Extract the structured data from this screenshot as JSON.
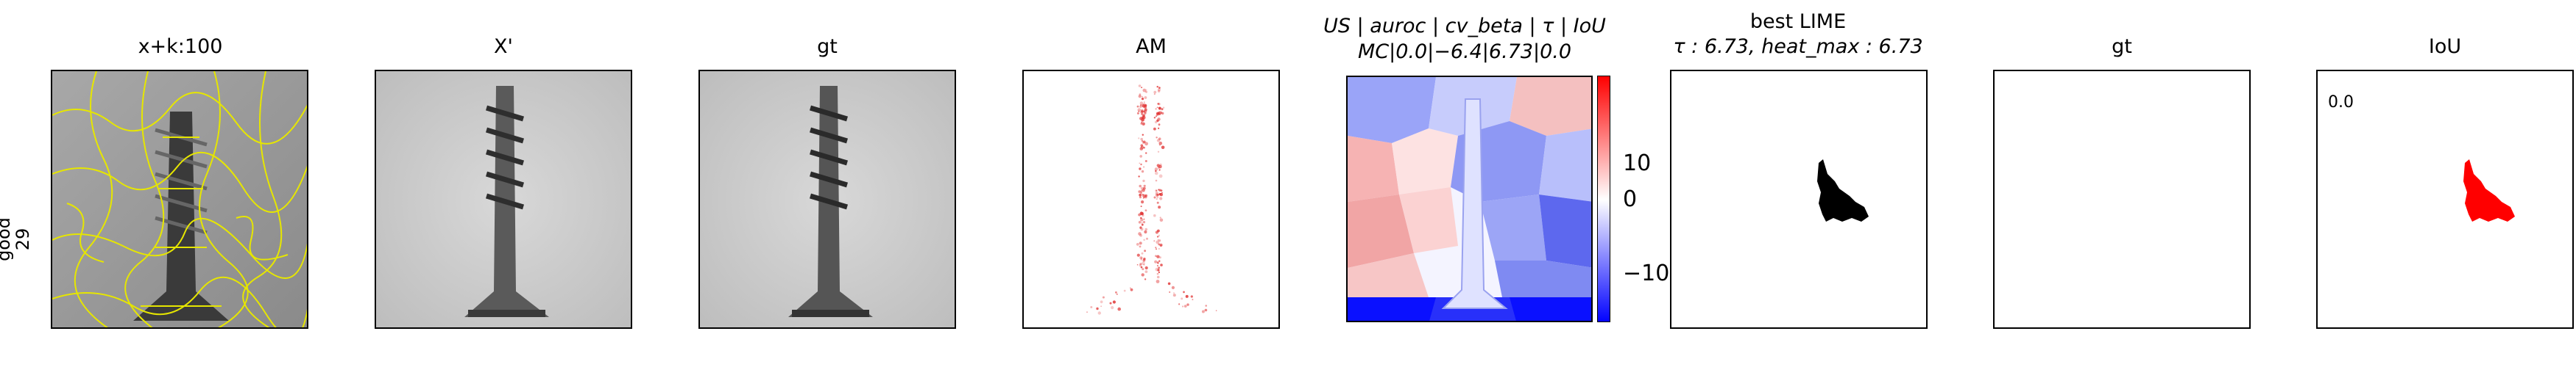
{
  "row_label": {
    "line1": "good",
    "line2": "29"
  },
  "panels": [
    {
      "title": "x+k:100"
    },
    {
      "title": "X'"
    },
    {
      "title": "gt"
    },
    {
      "title": "AM"
    },
    {
      "title_line1": "US | auroc | cv_beta | τ | IoU",
      "title_line2": "MC|0.0|−6.4|6.73|0.0"
    },
    {
      "title_line1": "best LIME",
      "title_line2": "τ : 6.73, heat_max : 6.73"
    },
    {
      "title": "gt"
    },
    {
      "title": "IoU",
      "annotation": "0.0"
    }
  ],
  "colorbar": {
    "ticks": [
      "10",
      "0",
      "−10"
    ],
    "range": [
      -16,
      16
    ],
    "colors": [
      "#0000ff",
      "#ffffff",
      "#ff0000"
    ]
  },
  "colors": {
    "superpixel_edges": "#e6e600",
    "am_points": "#e03030",
    "mask": "#000000",
    "iou_mask": "#ff0000"
  },
  "chart_data": {
    "type": "heatmap",
    "title": "",
    "colorbar_ticks": [
      10,
      0,
      -10
    ],
    "colorbar_range": [
      -16,
      16
    ],
    "iou": 0.0,
    "tau": 6.73,
    "heat_max": 6.73
  }
}
